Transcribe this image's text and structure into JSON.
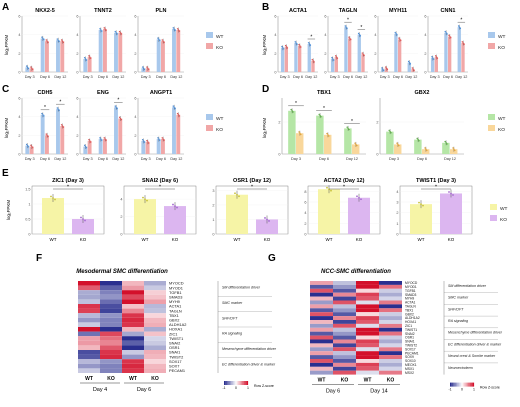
{
  "panels": {
    "A": {
      "label": "A",
      "ylabel": "log₂FPKM",
      "genes": [
        "NKX2-5",
        "TNNT2",
        "PLN"
      ],
      "days": [
        "Day 3",
        "Day 6",
        "Day 12"
      ],
      "legend": [
        "WT",
        "KO"
      ]
    },
    "B": {
      "label": "B",
      "ylabel": "log₂FPKM",
      "genes": [
        "ACTA1",
        "TAGLN",
        "MYH11",
        "CNN1"
      ],
      "days": [
        "Day 3",
        "Day 6",
        "Day 12"
      ],
      "legend": [
        "WT",
        "KO"
      ],
      "star": "*"
    },
    "C": {
      "label": "C",
      "ylabel": "log₂FPKM",
      "genes": [
        "CDH5",
        "ENG",
        "ANGPT1"
      ],
      "days": [
        "Day 3",
        "Day 6",
        "Day 12"
      ],
      "legend": [
        "WT",
        "KO"
      ],
      "star": "*"
    },
    "D": {
      "label": "D",
      "ylabel": "log₂FPKM",
      "genes": [
        "TBX1",
        "GBX2"
      ],
      "days": [
        "Day 3",
        "Day 6",
        "Day 12"
      ],
      "legend": [
        "WT",
        "KO"
      ],
      "star": "*"
    },
    "E": {
      "label": "E",
      "ylabel": "log₂FPKM",
      "titles": [
        "ZIC1 (Day 3)",
        "SNAI2 (Day 6)",
        "OSR1 (Day 12)",
        "ACTA2 (Day 12)",
        "TWIST1 (Day 3)"
      ],
      "groups": [
        "WT",
        "KO"
      ],
      "legend": [
        "WT",
        "KO"
      ],
      "star": "*"
    },
    "F": {
      "label": "F",
      "title": "Mesodermal SMC differentiation",
      "genes": [
        "MYOCD",
        "MYOD1",
        "TGFB1",
        "SMAD3",
        "MYH9",
        "ACTA1",
        "TAGLN",
        "TBX1",
        "GBX2",
        "ALDH1A2",
        "HOXA1",
        "ZIC1",
        "TWIST1",
        "SNAI2",
        "OSR1",
        "SNAI1",
        "TWIST2",
        "SOX17",
        "SOX7",
        "PECAM1"
      ],
      "categories": [
        "SM differentiation driver",
        "SMC marker",
        "SHF/OFT",
        "RA signaling",
        "Mesenchyme differentiation driver",
        "EC differentiation driver & marker"
      ],
      "columns": [
        "WT",
        "KO",
        "WT",
        "KO"
      ],
      "days": [
        "Day 4",
        "Day 6"
      ],
      "scale_label": "Row Z-score",
      "scale_ticks": [
        "-1",
        "0",
        "1"
      ]
    },
    "G": {
      "label": "G",
      "title": "NCC-SMC differentiation",
      "genes": [
        "MYOCD",
        "MYOD1",
        "TGFB1",
        "SMAD3",
        "MYH9",
        "ACTA1",
        "TAGLN",
        "TBX1",
        "GBX2",
        "ALDH1A2",
        "HOXA1",
        "ZIC1",
        "TWIST1",
        "SNAI2",
        "OSR1",
        "SNAI1",
        "TWIST2",
        "SOX17",
        "PECAM1",
        "SOX9",
        "SOX10",
        "MEOX1",
        "MSX1",
        "MSX2"
      ],
      "categories": [
        "SM differentiation driver",
        "SMC marker",
        "SHF/OFT",
        "RA signaling",
        "Mesenchyme differentiation driver",
        "EC differentiation driver & marker",
        "Neural crest & Somite marker",
        "Neuroectoderm"
      ],
      "columns": [
        "WT",
        "KO",
        "WT",
        "KO"
      ],
      "days": [
        "Day 6",
        "Day 14"
      ],
      "scale_label": "Row Z-score",
      "scale_ticks": [
        "-1",
        "0",
        "1"
      ]
    }
  },
  "colors": {
    "wt_bar": "#a8c8ec",
    "ko_bar": "#f1a7a7",
    "wt_dot": "#4c8ed8",
    "ko_dot": "#e05656",
    "d_wt": "#b5e6a6",
    "d_ko": "#f9d79b",
    "e_wt": "#f6f4a6",
    "e_ko": "#dcb6f0",
    "heat_low": "#2a2f8f",
    "heat_mid": "#ffffff",
    "heat_high": "#d3102b"
  },
  "chart_data": [
    {
      "type": "bar",
      "panel": "A",
      "categories": [
        "Day 3",
        "Day 6",
        "Day 12"
      ],
      "series": [
        {
          "gene": "NKX2-5",
          "wt": [
            0.5,
            3.6,
            3.4
          ],
          "ko": [
            0.4,
            3.3,
            3.3
          ]
        },
        {
          "gene": "TNNT2",
          "wt": [
            1.4,
            4.5,
            4.2
          ],
          "ko": [
            1.6,
            4.6,
            4.2
          ]
        },
        {
          "gene": "PLN",
          "wt": [
            0.4,
            3.5,
            4.6
          ],
          "ko": [
            0.4,
            3.3,
            4.5
          ]
        }
      ]
    },
    {
      "type": "bar",
      "panel": "B",
      "categories": [
        "Day 3",
        "Day 6",
        "Day 12"
      ],
      "series": [
        {
          "gene": "ACTA1",
          "wt": [
            2.6,
            3.1,
            3.0
          ],
          "ko": [
            2.7,
            2.8,
            1.2
          ]
        },
        {
          "gene": "TAGLN",
          "wt": [
            1.4,
            4.8,
            4.0
          ],
          "ko": [
            1.6,
            3.6,
            1.9
          ]
        },
        {
          "gene": "MYH11",
          "wt": [
            0.3,
            4.1,
            1.0
          ],
          "ko": [
            0.4,
            3.5,
            0.3
          ]
        },
        {
          "gene": "CNN1",
          "wt": [
            1.5,
            4.2,
            4.8
          ],
          "ko": [
            1.6,
            3.8,
            3.1
          ]
        }
      ]
    },
    {
      "type": "bar",
      "panel": "C",
      "categories": [
        "Day 3",
        "Day 6",
        "Day 12"
      ],
      "series": [
        {
          "gene": "CDH5",
          "wt": [
            0.9,
            4.2,
            4.8
          ],
          "ko": [
            0.8,
            2.0,
            3.0
          ]
        },
        {
          "gene": "ENG",
          "wt": [
            0.8,
            1.6,
            5.0
          ],
          "ko": [
            1.4,
            1.6,
            3.8
          ]
        },
        {
          "gene": "ANGPT1",
          "wt": [
            1.4,
            1.6,
            5.0
          ],
          "ko": [
            1.3,
            1.6,
            4.2
          ]
        }
      ]
    },
    {
      "type": "bar",
      "panel": "D",
      "categories": [
        "Day 3",
        "Day 6",
        "Day 12"
      ],
      "series": [
        {
          "gene": "TBX1",
          "wt": [
            2.7,
            2.4,
            1.6
          ],
          "ko": [
            1.3,
            1.2,
            0.6
          ]
        },
        {
          "gene": "GBX2",
          "wt": [
            1.4,
            0.9,
            0.7
          ],
          "ko": [
            0.6,
            0.3,
            0.3
          ]
        }
      ]
    },
    {
      "type": "bar",
      "panel": "E",
      "categories": [
        "WT",
        "KO"
      ],
      "series": [
        {
          "gene": "ZIC1 (Day 3)",
          "values": [
            1.2,
            0.5
          ],
          "ymax": 1.6
        },
        {
          "gene": "SNAI2 (Day 6)",
          "values": [
            4.0,
            3.2
          ],
          "ymax": 5.5
        },
        {
          "gene": "OSR1 (Day 12)",
          "values": [
            2.7,
            1.0
          ],
          "ymax": 3.3
        },
        {
          "gene": "ACTA2 (Day 12)",
          "values": [
            8.4,
            6.8
          ],
          "ymax": 9.0
        },
        {
          "gene": "TWIST1 (Day 3)",
          "values": [
            2.8,
            3.8
          ],
          "ymax": 4.5
        }
      ]
    }
  ]
}
